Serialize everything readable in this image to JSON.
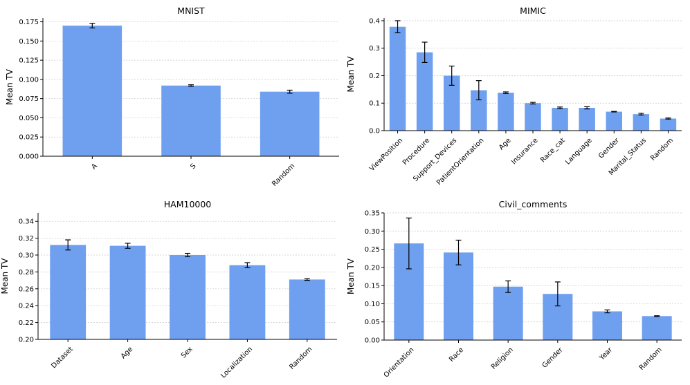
{
  "colors": {
    "bar": "#6f9fef",
    "axis": "#000000",
    "grid": "#c8c8c8",
    "errorbar": "#000000"
  },
  "chart_data": [
    {
      "type": "bar",
      "title": "MNIST",
      "ylabel": "Mean TV",
      "xlabel": "",
      "categories": [
        "A",
        "S",
        "Random"
      ],
      "values": [
        0.17,
        0.092,
        0.084
      ],
      "errors": [
        0.003,
        0.001,
        0.002
      ],
      "ylim": [
        0,
        0.18
      ],
      "yticks": [
        0.0,
        0.025,
        0.05,
        0.075,
        0.1,
        0.125,
        0.15,
        0.175
      ],
      "ytick_labels": [
        "0.000",
        "0.025",
        "0.050",
        "0.075",
        "0.100",
        "0.125",
        "0.150",
        "0.175"
      ],
      "grid": "y-dashed"
    },
    {
      "type": "bar",
      "title": "MIMIC",
      "ylabel": "Mean TV",
      "xlabel": "",
      "categories": [
        "ViewPosition",
        "Procedure",
        "Support_Devices",
        "PatientOrientation",
        "Age",
        "Insurance",
        "Race_cat",
        "Language",
        "Gender",
        "Marital_Status",
        "Random"
      ],
      "values": [
        0.378,
        0.285,
        0.2,
        0.147,
        0.138,
        0.1,
        0.083,
        0.083,
        0.069,
        0.06,
        0.044
      ],
      "errors": [
        0.022,
        0.037,
        0.035,
        0.035,
        0.003,
        0.003,
        0.003,
        0.004,
        0.001,
        0.003,
        0.002
      ],
      "ylim": [
        0,
        0.41
      ],
      "yticks": [
        0.0,
        0.1,
        0.2,
        0.3,
        0.4
      ],
      "ytick_labels": [
        "0.0",
        "0.1",
        "0.2",
        "0.3",
        "0.4"
      ],
      "grid": "y-dashed"
    },
    {
      "type": "bar",
      "title": "HAM10000",
      "ylabel": "Mean TV",
      "xlabel": "",
      "categories": [
        "Dataset",
        "Age",
        "Sex",
        "Localization",
        "Random"
      ],
      "values": [
        0.312,
        0.311,
        0.3,
        0.288,
        0.271
      ],
      "errors": [
        0.006,
        0.003,
        0.002,
        0.003,
        0.001
      ],
      "ylim": [
        0.2,
        0.35
      ],
      "yticks": [
        0.2,
        0.22,
        0.24,
        0.26,
        0.28,
        0.3,
        0.32,
        0.34
      ],
      "ytick_labels": [
        "0.20",
        "0.22",
        "0.24",
        "0.26",
        "0.28",
        "0.30",
        "0.32",
        "0.34"
      ],
      "grid": "y-dashed"
    },
    {
      "type": "bar",
      "title": "Civil_comments",
      "ylabel": "Mean TV",
      "xlabel": "",
      "categories": [
        "Orientation",
        "Race",
        "Religion",
        "Gender",
        "Year",
        "Random"
      ],
      "values": [
        0.266,
        0.241,
        0.147,
        0.127,
        0.079,
        0.066
      ],
      "errors": [
        0.07,
        0.034,
        0.016,
        0.033,
        0.004,
        0.001
      ],
      "ylim": [
        0,
        0.35
      ],
      "yticks": [
        0.0,
        0.05,
        0.1,
        0.15,
        0.2,
        0.25,
        0.3,
        0.35
      ],
      "ytick_labels": [
        "0.00",
        "0.05",
        "0.10",
        "0.15",
        "0.20",
        "0.25",
        "0.30",
        "0.35"
      ],
      "grid": "y-dashed"
    }
  ]
}
